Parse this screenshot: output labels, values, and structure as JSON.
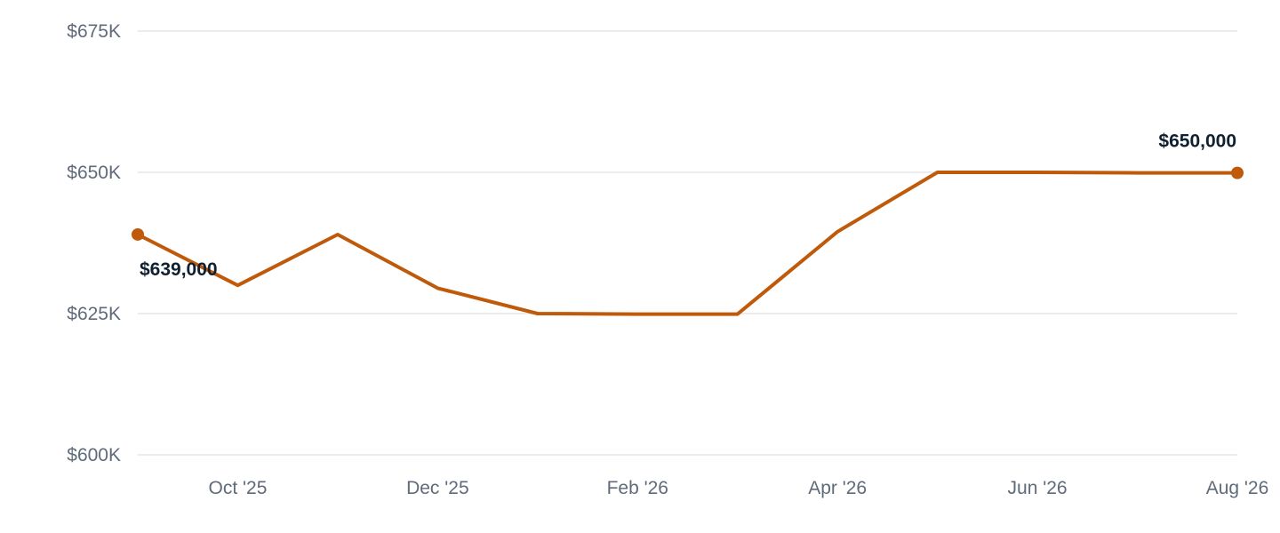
{
  "chart_data": {
    "type": "line",
    "title": "",
    "xlabel": "",
    "ylabel": "",
    "ylim": [
      600000,
      675000
    ],
    "y_ticks": [
      {
        "value": 675000,
        "label": "$675K"
      },
      {
        "value": 650000,
        "label": "$650K"
      },
      {
        "value": 625000,
        "label": "$625K"
      },
      {
        "value": 600000,
        "label": "$600K"
      }
    ],
    "x_ticks": [
      "Oct '25",
      "Dec '25",
      "Feb '26",
      "Apr '26",
      "Jun '26",
      "Aug '26"
    ],
    "grid": true,
    "legend": "none",
    "line_color": "#c05a0b",
    "series": [
      {
        "x": [
          "Sep '25",
          "Oct '25",
          "Nov '25",
          "Dec '25",
          "Jan '26",
          "Feb '26",
          "Mar '26",
          "Apr '26",
          "May '26",
          "Jun '26",
          "Jul '26",
          "Aug '26"
        ],
        "values": [
          639000,
          630000,
          639000,
          629500,
          625000,
          624900,
          624900,
          639500,
          650000,
          650000,
          649900,
          649900
        ]
      }
    ],
    "annotations": [
      {
        "point": "Sep '25",
        "label": "$639,000"
      },
      {
        "point": "Aug '26",
        "label": "$650,000"
      }
    ]
  }
}
